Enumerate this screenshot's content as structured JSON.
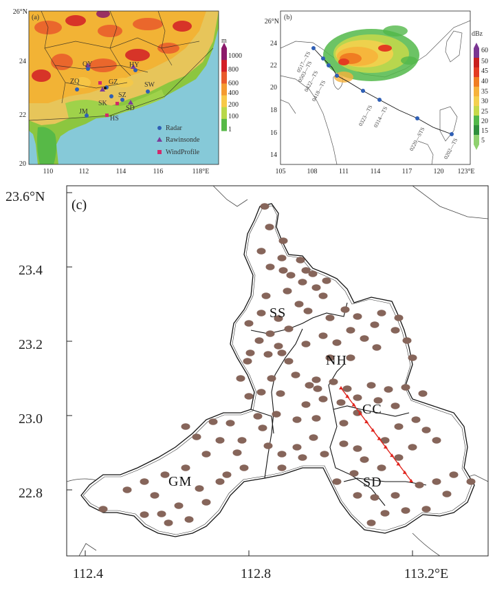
{
  "panel_a": {
    "label": "(a)",
    "lat_ticks": [
      "20",
      "22",
      "24",
      "26°N"
    ],
    "lon_ticks": [
      "110",
      "112",
      "114",
      "116",
      "118°E"
    ],
    "colorbar": {
      "unit": "m",
      "ticks": [
        "1000",
        "800",
        "600",
        "400",
        "200",
        "100",
        "1"
      ],
      "colors": [
        "#8b1a6b",
        "#d31f26",
        "#e95a2b",
        "#f49a2f",
        "#f7c948",
        "#b8d84a",
        "#57b947"
      ]
    },
    "legend": [
      {
        "label": "Radar",
        "symbol": "circle",
        "color": "#2f5fb5"
      },
      {
        "label": "Rawinsonde",
        "symbol": "triangle",
        "color": "#7b3c9a"
      },
      {
        "label": "WindProfile",
        "symbol": "square",
        "color": "#d22a6b"
      }
    ],
    "station_labels": [
      "QY",
      "HY",
      "ZQ",
      "GZ",
      "SZ",
      "SW",
      "SK",
      "SD",
      "JM",
      "HS"
    ]
  },
  "panel_b": {
    "label": "(b)",
    "lat_ticks": [
      "14",
      "16",
      "18",
      "20",
      "22",
      "24",
      "26°N"
    ],
    "lon_ticks": [
      "105",
      "108",
      "111",
      "114",
      "117",
      "120",
      "123°E"
    ],
    "colorbar": {
      "unit": "dBz",
      "ticks": [
        "60",
        "50",
        "45",
        "40",
        "35",
        "30",
        "25",
        "20",
        "15",
        "5"
      ],
      "colors": [
        "#7a3592",
        "#c81e1e",
        "#e33b22",
        "#f07d22",
        "#f6b23b",
        "#f4d04e",
        "#c6d94a",
        "#52b84a",
        "#2f8f3d",
        "#8fd16e"
      ]
    },
    "track_labels": [
      "0202—TS",
      "0220—STS",
      "0314—TS",
      "0323—TS",
      "0418—TS",
      "0422—TS",
      "0503—TS",
      "0517—TS"
    ]
  },
  "panel_c": {
    "label": "(c)",
    "lat_ticks": [
      "22.8",
      "23.0",
      "23.2",
      "23.4",
      "23.6°N"
    ],
    "lon_ticks": [
      "112.4",
      "112.8",
      "113.2°E"
    ],
    "regions": [
      "SS",
      "NH",
      "CC",
      "GM",
      "SD"
    ],
    "line_color": "#e0231c",
    "station_color": "#86655a"
  }
}
